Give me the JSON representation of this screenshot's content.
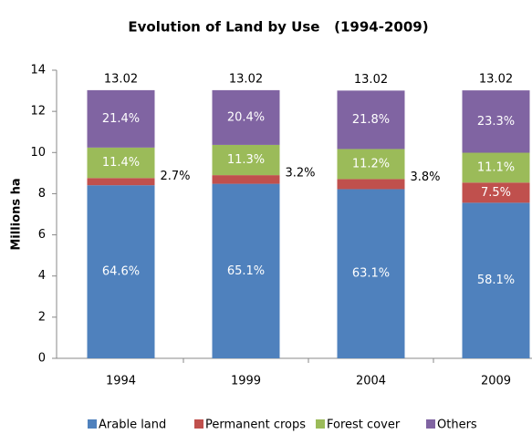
{
  "chart_data": {
    "type": "stacked_bar",
    "title": "Evolution of Land by Use   (1994-2009)",
    "y_label": "Millions ha",
    "categories": [
      "1994",
      "1999",
      "2004",
      "2009"
    ],
    "series": [
      {
        "name": "Arable land",
        "color": "#4f81bd",
        "values": [
          8.41,
          8.48,
          8.22,
          7.56
        ],
        "value_labels": [
          "64.6%",
          "65.1%",
          "63.1%",
          "58.1%"
        ]
      },
      {
        "name": "Permanent crops",
        "color": "#c0504d",
        "values": [
          0.35,
          0.42,
          0.49,
          0.98
        ],
        "value_labels": [
          "2.7%",
          "3.2%",
          "3.8%",
          "7.5%"
        ]
      },
      {
        "name": "Forest cover",
        "color": "#9bbb59",
        "values": [
          1.48,
          1.47,
          1.46,
          1.45
        ],
        "value_labels": [
          "11.4%",
          "11.3%",
          "11.2%",
          "11.1%"
        ]
      },
      {
        "name": "Others",
        "color": "#8064a2",
        "values": [
          2.79,
          2.66,
          2.84,
          3.03
        ],
        "value_labels": [
          "21.4%",
          "20.4%",
          "21.8%",
          "23.3%"
        ]
      }
    ],
    "totals": [
      13.02,
      13.02,
      13.02,
      13.02
    ],
    "ylim": [
      0,
      14
    ],
    "yticks": [
      0,
      2,
      4,
      6,
      8,
      10,
      12,
      14
    ],
    "grid": false,
    "legend": "bottom"
  }
}
